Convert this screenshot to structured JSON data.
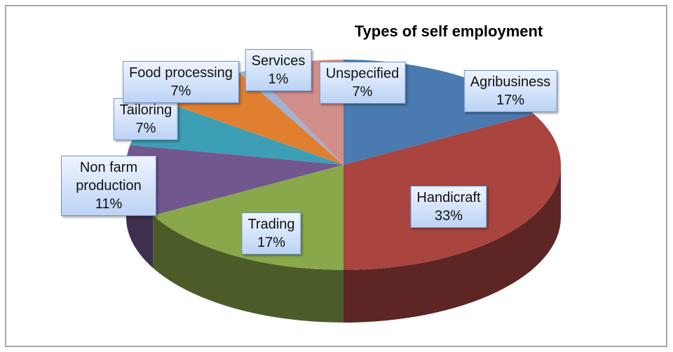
{
  "chart_data": {
    "type": "pie",
    "title": "Types of self employment",
    "categories": [
      "Agribusiness",
      "Handicraft",
      "Trading",
      "Non farm production",
      "Tailoring",
      "Food processing",
      "Services",
      "Unspecified"
    ],
    "values": [
      17,
      33,
      17,
      11,
      7,
      7,
      1,
      7
    ],
    "value_labels": [
      "17%",
      "33%",
      "17%",
      "11%",
      "7%",
      "7%",
      "1%",
      "7%"
    ],
    "colors": [
      "#4a7ab0",
      "#a9443f",
      "#8aa84a",
      "#72578f",
      "#3c9fb5",
      "#e07f30",
      "#9fb3d6",
      "#d18f8c"
    ]
  }
}
